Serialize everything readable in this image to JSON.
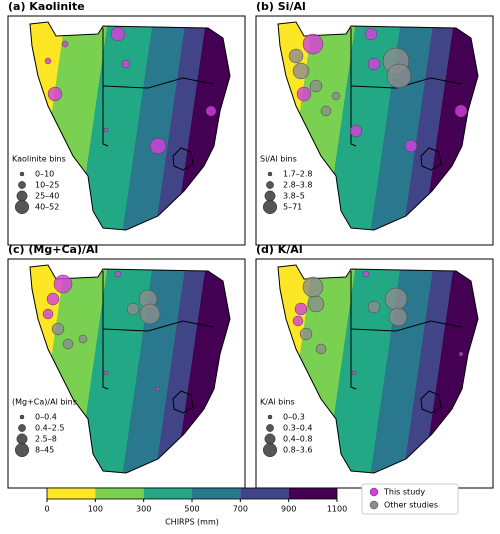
{
  "panels": [
    {
      "title": "(a) Kaolinite",
      "legend_title": "Kaolinite bins",
      "bins": [
        "0–10",
        "10–25",
        "25–40",
        "40–52"
      ]
    },
    {
      "title": "(b) Si/Al",
      "legend_title": "Si/Al bins",
      "bins": [
        "1.7–2.8",
        "2.8–3.8",
        "3.8–5",
        "5–71"
      ]
    },
    {
      "title": "(c) (Mg+Ca)/Al",
      "legend_title": "(Mg+Ca)/Al bins",
      "bins": [
        "0–0.4",
        "0.4–2.5",
        "2.5–8",
        "8–45"
      ]
    },
    {
      "title": "(d) K/Al",
      "legend_title": "K/Al bins",
      "bins": [
        "0–0.3",
        "0.3–0.4",
        "0.4–0.8",
        "0.8–3.6"
      ]
    }
  ],
  "colorbar": {
    "label": "CHIRPS (mm)",
    "ticks": [
      0,
      100,
      300,
      500,
      700,
      900,
      1100
    ],
    "colors": [
      "#fde725",
      "#7ad151",
      "#22a884",
      "#2a788e",
      "#414487",
      "#440154"
    ]
  },
  "legend": {
    "items": [
      {
        "name": "This study",
        "color": "#d63de0"
      },
      {
        "name": "Other studies",
        "color": "#8c8c8c"
      }
    ]
  }
}
